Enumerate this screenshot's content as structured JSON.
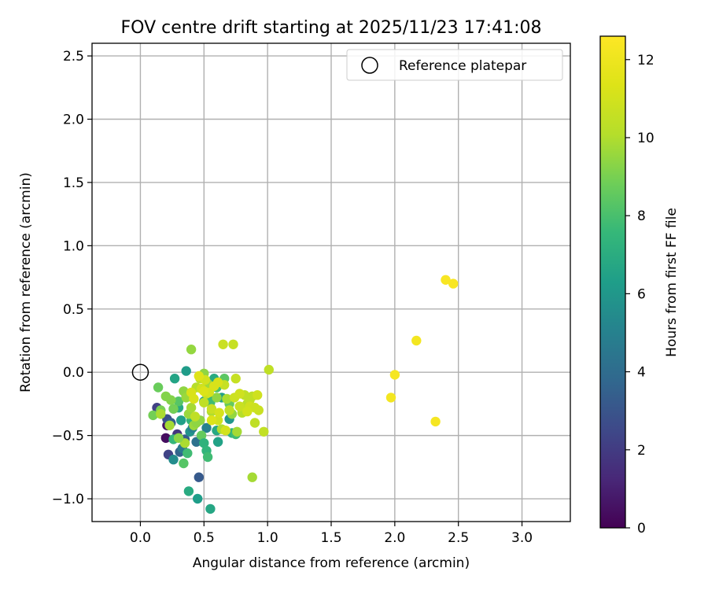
{
  "chart_data": {
    "type": "scatter",
    "title": "FOV centre drift starting at 2025/11/23 17:41:08",
    "xlabel": "Angular distance from reference (arcmin)",
    "ylabel": "Rotation from reference (arcmin)",
    "xlim": [
      -0.38,
      3.38
    ],
    "ylim": [
      -1.18,
      2.6
    ],
    "x_ticks": [
      0.0,
      0.5,
      1.0,
      1.5,
      2.0,
      2.5,
      3.0
    ],
    "x_tick_labels": [
      "0.0",
      "0.5",
      "1.0",
      "1.5",
      "2.0",
      "2.5",
      "3.0"
    ],
    "y_ticks": [
      -1.0,
      -0.5,
      0.0,
      0.5,
      1.0,
      1.5,
      2.0,
      2.5
    ],
    "y_tick_labels": [
      "−1.0",
      "−0.5",
      "0.0",
      "0.5",
      "1.0",
      "1.5",
      "2.0",
      "2.5"
    ],
    "grid": true,
    "legend": {
      "position": "top-right",
      "entries": [
        {
          "label": "Reference platepar",
          "marker": "open-circle"
        }
      ]
    },
    "reference_point": {
      "x": 0.0,
      "y": 0.0,
      "label": "Reference platepar"
    },
    "colorbar": {
      "label": "Hours from first FF file",
      "colormap": "viridis",
      "range": [
        0,
        12.6
      ],
      "ticks": [
        0,
        2,
        4,
        6,
        8,
        10,
        12
      ],
      "tick_labels": [
        "0",
        "2",
        "4",
        "6",
        "8",
        "10",
        "12"
      ]
    },
    "series": [
      {
        "name": "FOV centre",
        "x": [
          0.21,
          0.2,
          0.13,
          0.22,
          0.26,
          0.29,
          0.31,
          0.21,
          0.24,
          0.35,
          0.33,
          0.44,
          0.39,
          0.46,
          0.52,
          0.41,
          0.45,
          0.27,
          0.3,
          0.32,
          0.36,
          0.44,
          0.5,
          0.54,
          0.58,
          0.64,
          0.7,
          0.72,
          0.55,
          0.61,
          0.6,
          0.38,
          0.36,
          0.4,
          0.3,
          0.26,
          0.34,
          0.37,
          0.48,
          0.5,
          0.52,
          0.53,
          0.55,
          0.6,
          0.66,
          0.7,
          0.75,
          0.1,
          0.14,
          0.16,
          0.2,
          0.24,
          0.26,
          0.34,
          0.36,
          0.38,
          0.4,
          0.42,
          0.44,
          0.47,
          0.5,
          0.53,
          0.56,
          0.6,
          0.64,
          0.68,
          0.72,
          0.76,
          0.8,
          0.84,
          0.88,
          0.16,
          0.23,
          0.35,
          0.3,
          0.4,
          0.44,
          0.47,
          0.5,
          0.52,
          0.56,
          0.61,
          0.66,
          0.7,
          0.74,
          0.78,
          0.82,
          0.86,
          0.9,
          0.93,
          0.88,
          0.97,
          1.01,
          0.73,
          0.75,
          0.65,
          0.43,
          0.48,
          0.51,
          0.54,
          0.58,
          0.61,
          0.67,
          0.78,
          0.86,
          0.9,
          0.92,
          0.84,
          0.62,
          0.56,
          0.5,
          0.46,
          0.42,
          0.4,
          1.97,
          2.0,
          2.17,
          2.32,
          2.4,
          2.46
        ],
        "y": [
          -0.42,
          -0.52,
          -0.28,
          -0.65,
          -0.69,
          -0.49,
          -0.63,
          -0.37,
          -0.4,
          -0.53,
          -0.6,
          -0.55,
          -0.47,
          -0.83,
          -0.44,
          -0.44,
          -1.0,
          -0.05,
          -0.28,
          -0.38,
          0.01,
          -0.4,
          -0.23,
          -0.2,
          -0.05,
          -0.2,
          -0.37,
          -0.48,
          -1.08,
          -0.55,
          -0.46,
          -0.94,
          -0.19,
          -0.38,
          -0.23,
          -0.53,
          -0.72,
          -0.64,
          -0.5,
          -0.56,
          -0.62,
          -0.67,
          -0.24,
          -0.12,
          -0.05,
          -0.25,
          -0.49,
          -0.34,
          -0.12,
          -0.3,
          -0.19,
          -0.22,
          -0.29,
          -0.15,
          -0.2,
          -0.33,
          -0.28,
          -0.42,
          -0.4,
          -0.38,
          -0.01,
          -0.09,
          -0.31,
          -0.2,
          -0.45,
          -0.21,
          -0.33,
          -0.47,
          -0.32,
          -0.25,
          -0.19,
          -0.33,
          -0.42,
          -0.56,
          -0.52,
          0.18,
          -0.12,
          -0.05,
          -0.24,
          -0.17,
          -0.29,
          -0.38,
          -0.1,
          -0.3,
          -0.2,
          -0.27,
          -0.18,
          -0.22,
          -0.4,
          -0.3,
          -0.83,
          -0.47,
          0.02,
          0.22,
          -0.05,
          0.22,
          -0.35,
          -0.13,
          -0.06,
          -0.16,
          -0.11,
          -0.08,
          -0.46,
          -0.17,
          -0.27,
          -0.28,
          -0.18,
          -0.31,
          -0.32,
          -0.38,
          -0.15,
          -0.03,
          -0.21,
          -0.16,
          -0.2,
          -0.02,
          0.25,
          -0.39,
          0.73,
          0.7
        ],
        "hours": [
          0.6,
          0.4,
          2.2,
          2.3,
          5.5,
          1.8,
          3.6,
          2.8,
          3.4,
          3.3,
          4.6,
          4.2,
          5.8,
          3.2,
          5.0,
          5.0,
          6.3,
          6.6,
          6.8,
          6.4,
          6.2,
          6.0,
          6.2,
          7.0,
          6.9,
          6.4,
          6.0,
          7.4,
          6.7,
          6.5,
          6.8,
          6.9,
          7.6,
          7.4,
          8.3,
          7.5,
          8.3,
          7.8,
          8.6,
          7.3,
          7.4,
          7.8,
          7.8,
          8.0,
          8.4,
          8.6,
          7.8,
          8.9,
          8.7,
          9.0,
          9.2,
          9.2,
          8.9,
          9.4,
          9.6,
          9.6,
          9.8,
          9.6,
          9.4,
          9.4,
          9.4,
          9.7,
          10.0,
          9.4,
          10.0,
          9.9,
          9.5,
          9.8,
          10.1,
          10.2,
          10.3,
          9.9,
          9.8,
          9.9,
          9.3,
          9.5,
          10.1,
          10.4,
          10.4,
          10.6,
          10.7,
          10.9,
          10.6,
          10.4,
          10.8,
          10.7,
          10.4,
          10.4,
          10.4,
          10.7,
          9.8,
          10.5,
          10.4,
          10.6,
          10.6,
          10.7,
          10.4,
          10.9,
          11.0,
          11.1,
          11.2,
          11.2,
          11.0,
          10.9,
          10.9,
          10.8,
          10.9,
          11.0,
          11.1,
          11.3,
          11.3,
          11.4,
          11.2,
          11.2,
          12.2,
          12.3,
          12.2,
          12.3,
          12.4,
          12.4
        ]
      }
    ]
  }
}
